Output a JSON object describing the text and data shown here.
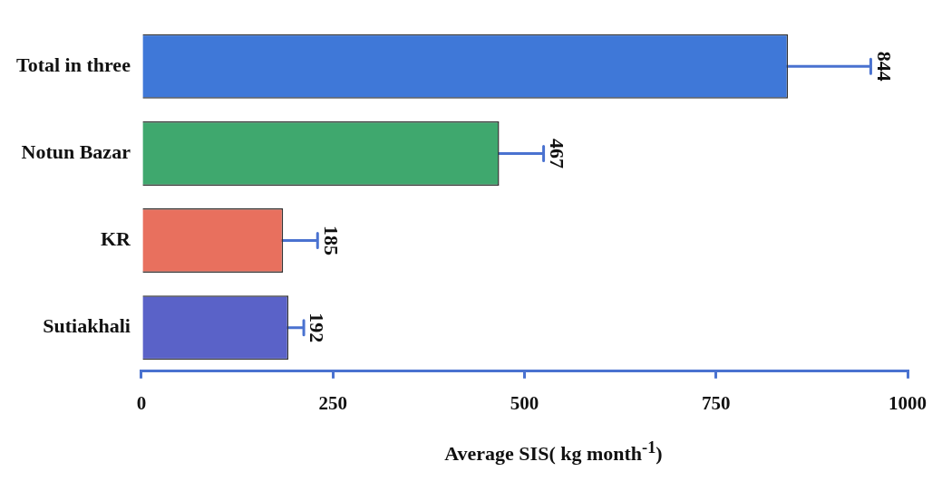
{
  "chart_data": {
    "type": "bar",
    "orientation": "horizontal",
    "categories": [
      "Total in three",
      "Notun Bazar",
      "KR",
      "Sutiakhali"
    ],
    "values": [
      844,
      467,
      185,
      192
    ],
    "errors": [
      108,
      58,
      45,
      20
    ],
    "colors": [
      "#3f78d8",
      "#3fa86e",
      "#e8705e",
      "#5a62c8"
    ],
    "value_labels": [
      null,
      "467",
      "185",
      "192"
    ],
    "annotations": [
      {
        "text": "844",
        "x": 952,
        "y": "Total in three"
      }
    ],
    "xlim": [
      0,
      1000
    ],
    "xticks": [
      0,
      250,
      500,
      750,
      1000
    ],
    "xlabel": "Average SIS( kg month$^{-1}$)",
    "grid": false,
    "legend": false
  }
}
